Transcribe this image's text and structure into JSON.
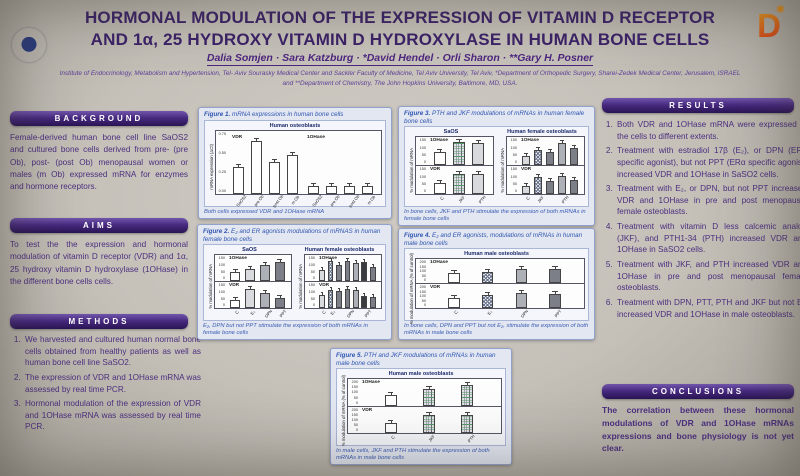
{
  "header": {
    "title_line1": "HORMONAL MODULATION OF THE EXPRESSION OF VITAMIN D RECEPTOR",
    "title_line2": "AND 1α, 25 HYDROXY VITAMIN D HYDROXYLASE IN HUMAN BONE CELLS",
    "authors": "Dalia Somjen · Sara Katzburg · *David Hendel · Orli Sharon · **Gary H. Posner",
    "affiliation_line1": "Institute of Endocrinology, Metabolism and Hypertension, Tel- Aviv Sourasky Medical Center and Sackler Faculty of Medicine, Tel Aviv University, Tel Aviv, *Department of Orthopedic Surgery, Sharei-Zedek Medical Center, Jerusalem, ISRAEL",
    "affiliation_line2": "and **Department of Chemistry, The John Hopkins University, Baltimore, MD, USA.",
    "left_logo_icon": "tel-aviv-university-seal-icon",
    "right_logo_icon": "vitamin-d-sun-logo-icon",
    "right_logo_letter": "D",
    "right_logo_sun": "✺"
  },
  "colors": {
    "section_bar_purple": "#46297e",
    "body_text_purple": "#4b2e7e",
    "figure_caption_blue": "#2f55b0",
    "poster_background": "#c5c1b9",
    "logo_orange": "#ea7a1e"
  },
  "sections": {
    "background": {
      "title": "BACKGROUND",
      "text": "Female-derived human bone cell line SaOS2 and cultured bone cells derived from pre- (pre Ob), post- (post Ob) menopausal women or males (m Ob) expressed mRNA for enzymes and hormone receptors."
    },
    "aims": {
      "title": "AIMS",
      "text": "To test the the expression and hormonal modulation of vitamin D receptor (VDR) and 1α, 25 hydroxy vitamin D hydroxylase (1OHase) in the different bone cells cells."
    },
    "methods": {
      "title": "METHODS",
      "items": [
        "We harvested and cultured human normal bone cells obtained from healthy patients as well as human bone cell line SaSO2.",
        "The expression of VDR and 1OHase mRNA was assessed by real time PCR.",
        "Hormonal modulation of the expression of VDR and 1OHase mRNA was assessed by real time PCR."
      ]
    },
    "results": {
      "title": "RESULTS",
      "items": [
        "Both VDR and 1OHase mRNA were expressed in the cells to different extents.",
        "Treatment with estradiol 17β (E₂), or DPN (ERβ specific agonist), but not PPT (ERα specific agonist) increased VDR and 1OHase in SaSO2 cells.",
        "Treatment with E₂, or DPN, but not PPT increased VDR and 1OHase in pre and post menopausal female osteoblasts.",
        "Treatment with vitamin D less calcemic analog (JKF), and PTH1-34 (PTH) increased VDR and 1OHase in SaSO2 cells.",
        "Treatment with JKF, and PTH increased VDR and 1OHase in pre and post menopausal female osteoblasts.",
        "Treatment with DPN, PTT, PTH and JKF but not E2 increased VDR and 1OHase in male osteoblasts."
      ]
    },
    "conclusions": {
      "title": "CONCLUSIONS",
      "text": "The correlation between these hormonal modulations of VDR and 1OHase mRNAs expressions and bone physiology is not yet clear."
    }
  },
  "figures": [
    {
      "type": "bar",
      "label": "Figure 1.",
      "title": "mRNA expressions in human bone cells",
      "footnote": "Both cells expressed VDR and 1OHase mRNA",
      "panels": [
        {
          "title": "Human osteoblasts",
          "ylabel": "mRNA expression (ΔCt)",
          "rows": [
            {
              "label": "",
              "yticks": [
                "0.75",
                "0.50",
                "0.25",
                "0.00"
              ],
              "groups": [
                {
                  "name": "VDR",
                  "bars": [
                    {
                      "x": "SaOS2",
                      "v": 45,
                      "f": "white"
                    },
                    {
                      "x": "pre Ob",
                      "v": 88,
                      "f": "white"
                    },
                    {
                      "x": "post Ob",
                      "v": 52,
                      "f": "white"
                    },
                    {
                      "x": "m Ob",
                      "v": 65,
                      "f": "white"
                    }
                  ]
                },
                {
                  "name": "1OHase",
                  "bars": [
                    {
                      "x": "SaOS2",
                      "v": 13,
                      "f": "white"
                    },
                    {
                      "x": "pre Ob",
                      "v": 13,
                      "f": "white"
                    },
                    {
                      "x": "post Ob",
                      "v": 13,
                      "f": "white"
                    },
                    {
                      "x": "m Ob",
                      "v": 13,
                      "f": "white"
                    }
                  ]
                }
              ]
            }
          ]
        }
      ]
    },
    {
      "type": "bar",
      "label": "Figure 2.",
      "title": "E₂ and ER agonists modulations of mRNAS in human female bone cells",
      "footnote": "E₂, DPN but not PPT stimulate the expression of both mRNAs in female bone cells",
      "panels": [
        {
          "title": "SaOS",
          "ylabel": "% modulation of mRNA",
          "rows": [
            {
              "label": "1OHase",
              "yticks": [
                "150",
                "100",
                "50",
                "0"
              ],
              "groups": [
                {
                  "name": "",
                  "bars": [
                    {
                      "x": "C",
                      "v": 40,
                      "f": "white"
                    },
                    {
                      "x": "E₂",
                      "v": 55,
                      "f": "lgray"
                    },
                    {
                      "x": "DPN",
                      "v": 72,
                      "f": "mgray"
                    },
                    {
                      "x": "PPT",
                      "v": 82,
                      "f": "dgray"
                    }
                  ]
                }
              ]
            },
            {
              "label": "VDR",
              "yticks": [
                "150",
                "100",
                "50",
                "0"
              ],
              "groups": [
                {
                  "name": "",
                  "bars": [
                    {
                      "x": "C",
                      "v": 35,
                      "f": "white"
                    },
                    {
                      "x": "E₂",
                      "v": 85,
                      "f": "lgray"
                    },
                    {
                      "x": "DPN",
                      "v": 68,
                      "f": "mgray"
                    },
                    {
                      "x": "PPT",
                      "v": 45,
                      "f": "dgray"
                    }
                  ]
                }
              ]
            }
          ]
        },
        {
          "title": "Human female osteoblasts",
          "ylabel": "% modulation of mRNA",
          "rows": [
            {
              "label": "1OHase",
              "yticks": [
                "150",
                "100",
                "50",
                "0"
              ],
              "groups": [
                {
                  "name": "",
                  "bars": [
                    {
                      "x": "C",
                      "v": 48,
                      "f": "lgray"
                    },
                    {
                      "x": "E₂",
                      "v": 88,
                      "f": "hatch"
                    },
                    {
                      "x": "",
                      "v": 72,
                      "f": "dgray"
                    },
                    {
                      "x": "DPN",
                      "v": 88,
                      "f": "dgray"
                    },
                    {
                      "x": "",
                      "v": 78,
                      "f": "mgray"
                    },
                    {
                      "x": "PPT",
                      "v": 82,
                      "f": "black"
                    },
                    {
                      "x": "",
                      "v": 62,
                      "f": "dgray"
                    }
                  ]
                }
              ]
            },
            {
              "label": "VDR",
              "yticks": [
                "150",
                "100",
                "50",
                "0"
              ],
              "groups": [
                {
                  "name": "",
                  "bars": [
                    {
                      "x": "C",
                      "v": 58,
                      "f": "lgray"
                    },
                    {
                      "x": "E₂",
                      "v": 80,
                      "f": "hatch"
                    },
                    {
                      "x": "",
                      "v": 75,
                      "f": "dgray"
                    },
                    {
                      "x": "DPN",
                      "v": 85,
                      "f": "dgray"
                    },
                    {
                      "x": "",
                      "v": 78,
                      "f": "mgray"
                    },
                    {
                      "x": "PPT",
                      "v": 55,
                      "f": "black"
                    },
                    {
                      "x": "",
                      "v": 50,
                      "f": "dgray"
                    }
                  ]
                }
              ]
            }
          ]
        }
      ]
    },
    {
      "type": "bar",
      "label": "Figure 3.",
      "title": "PTH and JKF modulations of mRNAs in human female bone cells",
      "footnote": "In bone cells, JKF and PTH stimulate the expression of both mRNAs in female bone cells",
      "panels": [
        {
          "title": "SaOS",
          "ylabel": "% modulation of mRNA",
          "rows": [
            {
              "label": "1OHase",
              "yticks": [
                "150",
                "100",
                "50",
                "0"
              ],
              "groups": [
                {
                  "name": "",
                  "bars": [
                    {
                      "x": "C",
                      "v": 55,
                      "f": "white"
                    },
                    {
                      "x": "JKF",
                      "v": 92,
                      "f": "hatch2"
                    },
                    {
                      "x": "PTH",
                      "v": 88,
                      "f": "lgray"
                    }
                  ]
                }
              ]
            },
            {
              "label": "VDR",
              "yticks": [
                "150",
                "100",
                "50",
                "0"
              ],
              "groups": [
                {
                  "name": "",
                  "bars": [
                    {
                      "x": "C",
                      "v": 45,
                      "f": "white"
                    },
                    {
                      "x": "JKF",
                      "v": 82,
                      "f": "hatch2"
                    },
                    {
                      "x": "PTH",
                      "v": 80,
                      "f": "lgray"
                    }
                  ]
                }
              ]
            }
          ]
        },
        {
          "title": "Human female osteoblasts",
          "ylabel": "% modulation of mRNA",
          "rows": [
            {
              "label": "1OHase",
              "yticks": [
                "150",
                "100",
                "50",
                "0"
              ],
              "groups": [
                {
                  "name": "",
                  "bars": [
                    {
                      "x": "C",
                      "v": 38,
                      "f": "lgray"
                    },
                    {
                      "x": "JKF",
                      "v": 62,
                      "f": "hatch"
                    },
                    {
                      "x": "",
                      "v": 52,
                      "f": "dgray"
                    },
                    {
                      "x": "PTH",
                      "v": 88,
                      "f": "mgray"
                    },
                    {
                      "x": "",
                      "v": 68,
                      "f": "dgray"
                    }
                  ]
                }
              ]
            },
            {
              "label": "VDR",
              "yticks": [
                "150",
                "100",
                "50",
                "0"
              ],
              "groups": [
                {
                  "name": "",
                  "bars": [
                    {
                      "x": "C",
                      "v": 32,
                      "f": "lgray"
                    },
                    {
                      "x": "JKF",
                      "v": 68,
                      "f": "hatch"
                    },
                    {
                      "x": "",
                      "v": 52,
                      "f": "dgray"
                    },
                    {
                      "x": "PTH",
                      "v": 72,
                      "f": "mgray"
                    },
                    {
                      "x": "",
                      "v": 56,
                      "f": "dgray"
                    }
                  ]
                }
              ]
            }
          ]
        }
      ]
    },
    {
      "type": "bar",
      "label": "Figure 4.",
      "title": "E₂ and ER agonists, modulations of mRNAs in human male bone cells",
      "footnote": "In bone cells, DPN and PPT but not E₂, stimulate the expression of both mRNAs in male bone cells",
      "panels": [
        {
          "title": "Human male osteoblasts",
          "ylabel": "% modulation of mRNA (% of control)",
          "rows": [
            {
              "label": "1OHase",
              "yticks": [
                "200",
                "150",
                "100",
                "50",
                "0"
              ],
              "groups": [
                {
                  "name": "",
                  "bars": [
                    {
                      "x": "C",
                      "v": 48,
                      "f": "white"
                    },
                    {
                      "x": "E₂",
                      "v": 53,
                      "f": "hatch"
                    },
                    {
                      "x": "DPN",
                      "v": 70,
                      "f": "mgray"
                    },
                    {
                      "x": "PPT",
                      "v": 66,
                      "f": "dgray"
                    }
                  ]
                }
              ]
            },
            {
              "label": "VDR",
              "yticks": [
                "200",
                "150",
                "100",
                "50",
                "0"
              ],
              "groups": [
                {
                  "name": "",
                  "bars": [
                    {
                      "x": "C",
                      "v": 50,
                      "f": "white"
                    },
                    {
                      "x": "E₂",
                      "v": 62,
                      "f": "hatch"
                    },
                    {
                      "x": "DPN",
                      "v": 74,
                      "f": "mgray"
                    },
                    {
                      "x": "PPT",
                      "v": 68,
                      "f": "dgray"
                    }
                  ]
                }
              ]
            }
          ]
        }
      ]
    },
    {
      "type": "bar",
      "label": "Figure 5.",
      "title": "PTH and JKF modulations of mRNAs in human male bone cells",
      "footnote": "In male cells, JKF and PTH stimulate the expression of both mRNAs in male bone cells",
      "panels": [
        {
          "title": "Human male osteoblasts",
          "ylabel": "% modulation of mRNA (% of control)",
          "rows": [
            {
              "label": "1OHase",
              "yticks": [
                "200",
                "150",
                "100",
                "50",
                "0"
              ],
              "groups": [
                {
                  "name": "",
                  "bars": [
                    {
                      "x": "C",
                      "v": 46,
                      "f": "white"
                    },
                    {
                      "x": "JKF",
                      "v": 72,
                      "f": "hatch2"
                    },
                    {
                      "x": "PTH",
                      "v": 90,
                      "f": "hatch2"
                    }
                  ]
                }
              ]
            },
            {
              "label": "VDR",
              "yticks": [
                "200",
                "150",
                "100",
                "50",
                "0"
              ],
              "groups": [
                {
                  "name": "",
                  "bars": [
                    {
                      "x": "C",
                      "v": 45,
                      "f": "white"
                    },
                    {
                      "x": "JKF",
                      "v": 78,
                      "f": "hatch2"
                    },
                    {
                      "x": "PTH",
                      "v": 78,
                      "f": "hatch2"
                    }
                  ]
                }
              ]
            }
          ]
        }
      ]
    }
  ]
}
